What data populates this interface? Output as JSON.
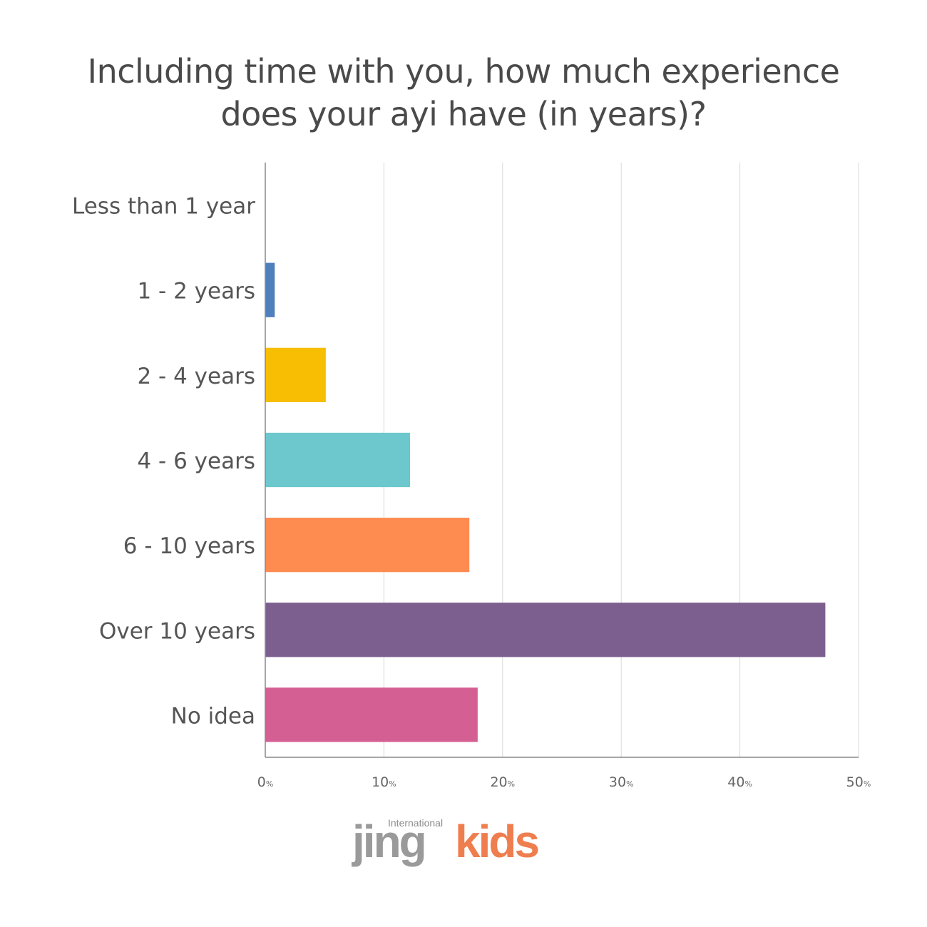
{
  "title_line1": "Including time with you, how much experience",
  "title_line2": "does your ayi have (in years)?",
  "logo": {
    "small": "International",
    "word1": "jing",
    "word2": "kids"
  },
  "chart_data": {
    "type": "bar",
    "orientation": "horizontal",
    "title": "Including time with you, how much experience does your ayi have (in years)?",
    "categories": [
      "Less than 1 year",
      "1 - 2 years",
      "2 - 4 years",
      "4 - 6 years",
      "6 - 10 years",
      "Over 10 years",
      "No idea"
    ],
    "values": [
      0,
      0.8,
      5.1,
      12.2,
      17.2,
      47.2,
      17.9
    ],
    "colors": [
      "#4f7fbd",
      "#4f7fbd",
      "#f7be03",
      "#6cc8cc",
      "#fe8c51",
      "#7d5f8f",
      "#d45f92"
    ],
    "xlim": [
      0,
      50
    ],
    "xticks": [
      0,
      10,
      20,
      30,
      40,
      50
    ],
    "tick_suffix": "%",
    "grid": true,
    "xlabel": "",
    "ylabel": ""
  }
}
